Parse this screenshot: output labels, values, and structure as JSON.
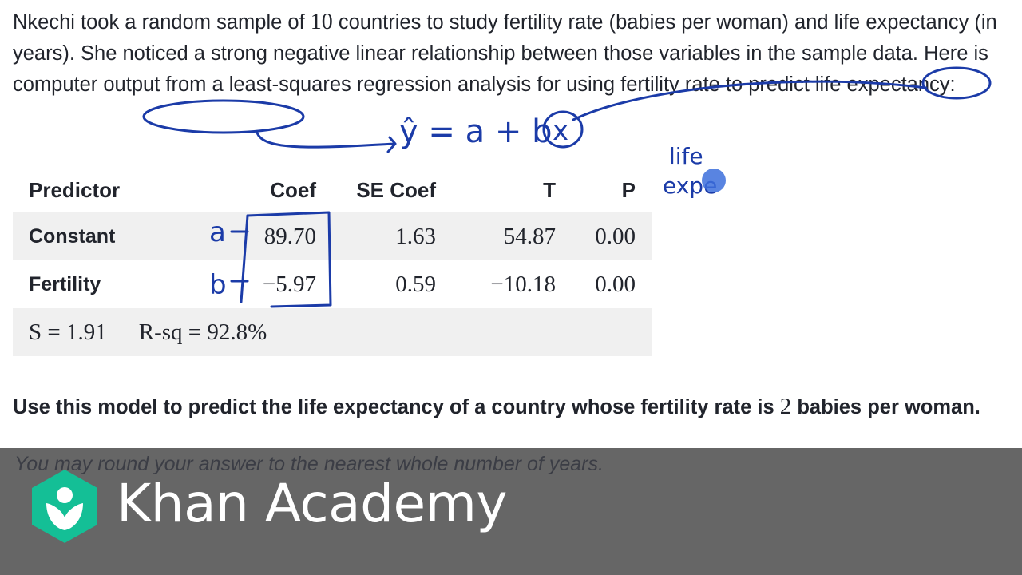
{
  "problem": {
    "part1": "Nkechi took a random sample of ",
    "sample_size": "10",
    "part2": " countries to study fertility rate (babies per woman) and life expectancy (in years). She noticed a strong negative linear relationship between those variables in the sample data. Here is computer output from a least-squares regression analysis for using fertility rate to predict life expectancy:"
  },
  "table": {
    "headers": [
      "Predictor",
      "Coef",
      "SE Coef",
      "T",
      "P"
    ],
    "rows": [
      {
        "label": "Constant",
        "coef": "89.70",
        "se": "1.63",
        "t": "54.87",
        "p": "0.00"
      },
      {
        "label": "Fertility",
        "coef": "−5.97",
        "se": "0.59",
        "t": "−10.18",
        "p": "0.00"
      }
    ],
    "s_stat": "S = 1.91",
    "rsq_stat": "R-sq = 92.8%"
  },
  "question": {
    "part1": "Use this model to predict the life expectancy of a country whose fertility rate is ",
    "value": "2",
    "part2": " babies per woman."
  },
  "hint": "You may round your answer to the nearest whole number of years.",
  "annotations": {
    "equation": "ŷ = a + b",
    "x_var": "x",
    "a_label": "a",
    "b_label": "b",
    "margin_note_1": "life",
    "margin_note_2": "expe"
  },
  "branding": {
    "name": "Khan Academy",
    "logo_color": "#14bf96"
  }
}
